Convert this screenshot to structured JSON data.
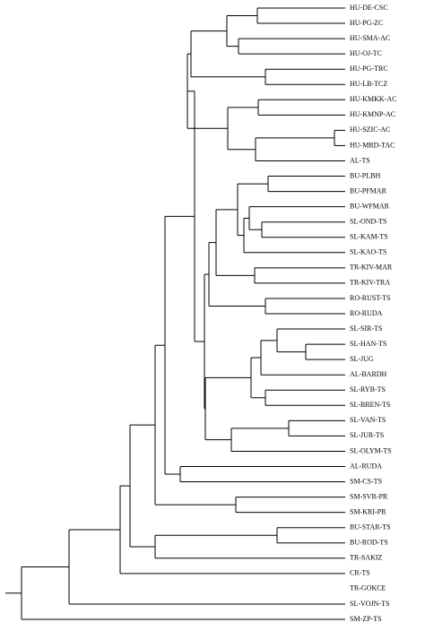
{
  "diagram": {
    "type": "phylogenetic-dendrogram",
    "line_color": "#000000",
    "tree": [
      "((((((HU-DE-CSC,HU-PG-ZC),(HU-SMA-AC,HU-OJ-TC)),(HU-PG-TRC,HU-LB-TCZ)),",
      "((HU-KMKK-AC,HU-KMNP-AC),((HU-SZIC-AC,HU-MRD-TAC),AL-TS)),",
      "(((((BU-PLBH,BU-PFMAR),((BU-WFMAR,(SL-OND-TS,SL-KAM-TS)),SL-KAO-TS)),(TR-KIV-MAR,TR-KIV-TRA)),(RO-RUST-TS,RO-RUDA)),",
      "((((SL-SIR-TS,(SL-HAN-TS,SL-JUG)),AL-BARDH),(SL-RYB-TS,SL-BREN-TS)),((SL-VAN-TS,SL-JUR-TS),SL-OLYM-TS)))),",
      "(AL-RUDA,SM-CS-TS)),(SM-SVR-PR,SM-KRI-PR)),((BU-STAR-TS,BU-ROD-TS),TR-SAKIZ)),CR-TS),TR-GOKCE),SL-VOJN-TS),SM-ZP-TS)"
    ],
    "leaves": [
      "HU-DE-CSC",
      "HU-PG-ZC",
      "HU-SMA-AC",
      "HU-OJ-TC",
      "HU-PG-TRC",
      "HU-LB-TCZ",
      "HU-KMKK-AC",
      "HU-KMNP-AC",
      "HU-SZIC-AC",
      "HU-MRD-TAC",
      "AL-TS",
      "BU-PLBH",
      "BU-PFMAR",
      "BU-WFMAR",
      "SL-OND-TS",
      "SL-KAM-TS",
      "SL-KAO-TS",
      "TR-KIV-MAR",
      "TR-KIV-TRA",
      "RO-RUST-TS",
      "RO-RUDA",
      "SL-SIR-TS",
      "SL-HAN-TS",
      "SL-JUG",
      "AL-BARDH",
      "SL-RYB-TS",
      "SL-BREN-TS",
      "SL-VAN-TS",
      "SL-JUR-TS",
      "SL-OLYM-TS",
      "AL-RUDA",
      "SM-CS-TS",
      "SM-SVR-PR",
      "SM-KRI-PR",
      "BU-STAR-TS",
      "BU-ROD-TS",
      "TR-SAKIZ",
      "CR-TS",
      "TR-GOKCE",
      "SL-VOJN-TS",
      "SM-ZP-TS"
    ]
  }
}
